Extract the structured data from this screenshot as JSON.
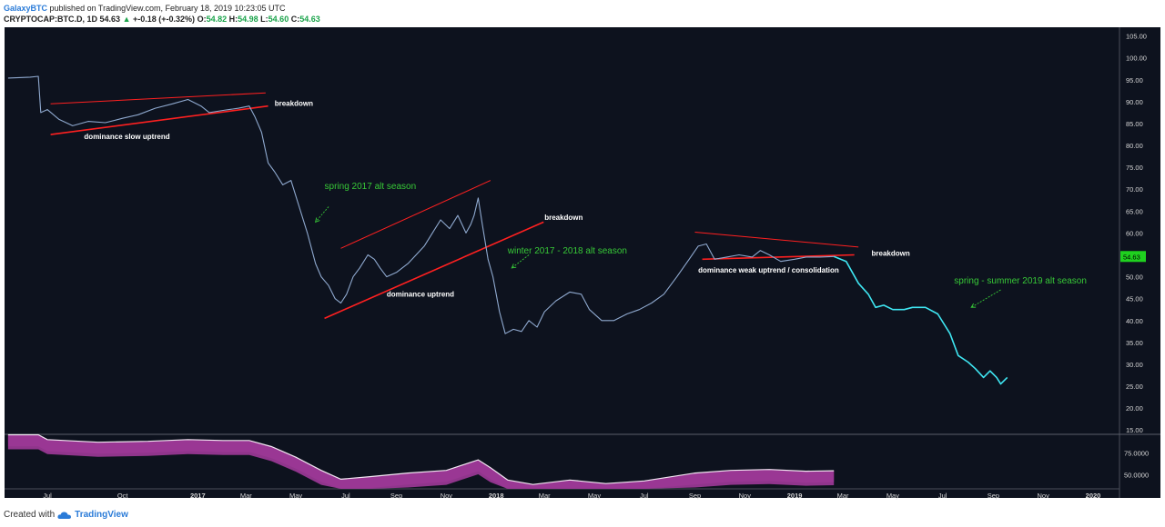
{
  "header": {
    "author": "GalaxyBTC",
    "published": "published on TradingView.com, February 18, 2019 10:23:05 UTC",
    "symbol": "CRYPTOCAP:BTC.D, 1D",
    "last": "54.63",
    "change": "+-0.18 (+-0.32%)",
    "o_label": "O:",
    "o": "54.82",
    "h_label": "H:",
    "h": "54.98",
    "l_label": "L:",
    "l": "54.60",
    "c_label": "C:",
    "c": "54.63"
  },
  "footer": {
    "created_with": "Created with",
    "brand": "TradingView",
    "logo_icon": "tradingview-cloud-icon"
  },
  "colors": {
    "background": "#0d121e",
    "price_line": "#8fa9cf",
    "projection_line": "#3fe6f2",
    "trendline": "#ff2020",
    "annotation_green": "#37c837",
    "price_badge": "#1fd11f"
  },
  "chart_data": {
    "type": "line",
    "title": "",
    "xlabel": "",
    "ylabel": "",
    "y_ticks": [
      "105.00",
      "100.00",
      "95.00",
      "90.00",
      "85.00",
      "80.00",
      "75.00",
      "70.00",
      "65.00",
      "60.00",
      "55.00",
      "50.00",
      "45.00",
      "40.00",
      "35.00",
      "30.00",
      "25.00",
      "20.00",
      "15.00"
    ],
    "ylim": [
      14,
      107
    ],
    "x_ticks": [
      {
        "label": "Jul",
        "date": "2016-07-01"
      },
      {
        "label": "Oct",
        "date": "2016-10-01"
      },
      {
        "label": "2017",
        "date": "2017-01-01"
      },
      {
        "label": "Mar",
        "date": "2017-03-01"
      },
      {
        "label": "May",
        "date": "2017-05-01"
      },
      {
        "label": "Jul",
        "date": "2017-07-01"
      },
      {
        "label": "Sep",
        "date": "2017-09-01"
      },
      {
        "label": "Nov",
        "date": "2017-11-01"
      },
      {
        "label": "2018",
        "date": "2018-01-01"
      },
      {
        "label": "Mar",
        "date": "2018-03-01"
      },
      {
        "label": "May",
        "date": "2018-05-01"
      },
      {
        "label": "Jul",
        "date": "2018-07-01"
      },
      {
        "label": "Sep",
        "date": "2018-09-01"
      },
      {
        "label": "Nov",
        "date": "2018-11-01"
      },
      {
        "label": "2019",
        "date": "2019-01-01"
      },
      {
        "label": "Mar",
        "date": "2019-03-01"
      },
      {
        "label": "May",
        "date": "2019-05-01"
      },
      {
        "label": "Jul",
        "date": "2019-07-01"
      },
      {
        "label": "Sep",
        "date": "2019-09-01"
      },
      {
        "label": "Nov",
        "date": "2019-11-01"
      },
      {
        "label": "2020",
        "date": "2020-01-01"
      }
    ],
    "last_price_label": "54.63",
    "series": [
      {
        "points": [
          [
            "2016-05-14",
            95.4
          ],
          [
            "2016-06-10",
            95.6
          ],
          [
            "2016-06-20",
            95.8
          ],
          [
            "2016-06-23",
            87.5
          ],
          [
            "2016-07-01",
            88.2
          ],
          [
            "2016-07-15",
            86.0
          ],
          [
            "2016-08-01",
            84.5
          ],
          [
            "2016-08-20",
            85.5
          ],
          [
            "2016-09-10",
            85.2
          ],
          [
            "2016-10-01",
            86.2
          ],
          [
            "2016-10-20",
            87.0
          ],
          [
            "2016-11-10",
            88.5
          ],
          [
            "2016-12-01",
            89.5
          ],
          [
            "2016-12-20",
            90.5
          ],
          [
            "2017-01-05",
            89.0
          ],
          [
            "2017-01-15",
            87.5
          ],
          [
            "2017-02-01",
            88.0
          ],
          [
            "2017-02-20",
            88.5
          ],
          [
            "2017-03-05",
            89.0
          ],
          [
            "2017-03-12",
            86.5
          ],
          [
            "2017-03-20",
            83.0
          ],
          [
            "2017-03-28",
            76.0
          ],
          [
            "2017-04-05",
            74.0
          ],
          [
            "2017-04-15",
            71.0
          ],
          [
            "2017-04-25",
            72.0
          ],
          [
            "2017-05-05",
            66.0
          ],
          [
            "2017-05-15",
            60.0
          ],
          [
            "2017-05-25",
            53.0
          ],
          [
            "2017-06-01",
            50.0
          ],
          [
            "2017-06-10",
            48.0
          ],
          [
            "2017-06-18",
            45.0
          ],
          [
            "2017-06-25",
            44.0
          ],
          [
            "2017-07-02",
            46.0
          ],
          [
            "2017-07-10",
            50.0
          ],
          [
            "2017-07-18",
            52.0
          ],
          [
            "2017-07-28",
            55.0
          ],
          [
            "2017-08-05",
            54.0
          ],
          [
            "2017-08-12",
            52.0
          ],
          [
            "2017-08-20",
            50.0
          ],
          [
            "2017-09-01",
            51.0
          ],
          [
            "2017-09-15",
            53.0
          ],
          [
            "2017-09-25",
            55.0
          ],
          [
            "2017-10-05",
            57.0
          ],
          [
            "2017-10-15",
            60.0
          ],
          [
            "2017-10-25",
            63.0
          ],
          [
            "2017-11-05",
            61.0
          ],
          [
            "2017-11-15",
            64.0
          ],
          [
            "2017-11-25",
            60.0
          ],
          [
            "2017-12-01",
            62.0
          ],
          [
            "2017-12-05",
            64.0
          ],
          [
            "2017-12-10",
            68.0
          ],
          [
            "2017-12-15",
            62.0
          ],
          [
            "2017-12-22",
            54.0
          ],
          [
            "2017-12-28",
            50.0
          ],
          [
            "2018-01-05",
            42.0
          ],
          [
            "2018-01-12",
            37.0
          ],
          [
            "2018-01-22",
            38.0
          ],
          [
            "2018-02-01",
            37.5
          ],
          [
            "2018-02-10",
            40.0
          ],
          [
            "2018-02-20",
            38.5
          ],
          [
            "2018-03-01",
            42.0
          ],
          [
            "2018-03-15",
            44.5
          ],
          [
            "2018-04-01",
            46.5
          ],
          [
            "2018-04-15",
            46.0
          ],
          [
            "2018-04-25",
            42.5
          ],
          [
            "2018-05-10",
            40.0
          ],
          [
            "2018-05-25",
            40.0
          ],
          [
            "2018-06-10",
            41.5
          ],
          [
            "2018-06-25",
            42.5
          ],
          [
            "2018-07-10",
            44.0
          ],
          [
            "2018-07-25",
            46.0
          ],
          [
            "2018-08-10",
            50.0
          ],
          [
            "2018-08-25",
            54.0
          ],
          [
            "2018-09-05",
            57.0
          ],
          [
            "2018-09-15",
            57.5
          ],
          [
            "2018-09-25",
            54.0
          ],
          [
            "2018-10-10",
            54.5
          ],
          [
            "2018-10-25",
            55.0
          ],
          [
            "2018-11-10",
            54.5
          ],
          [
            "2018-11-20",
            56.0
          ],
          [
            "2018-12-01",
            55.0
          ],
          [
            "2018-12-15",
            53.5
          ],
          [
            "2019-01-01",
            54.0
          ],
          [
            "2019-01-15",
            54.5
          ],
          [
            "2019-02-01",
            54.5
          ],
          [
            "2019-02-18",
            54.63
          ]
        ]
      },
      {
        "points": [
          [
            "2019-02-18",
            54.63
          ],
          [
            "2019-03-05",
            53.5
          ],
          [
            "2019-03-20",
            48.5
          ],
          [
            "2019-04-01",
            46.0
          ],
          [
            "2019-04-10",
            43.0
          ],
          [
            "2019-04-20",
            43.5
          ],
          [
            "2019-05-01",
            42.5
          ],
          [
            "2019-05-15",
            42.5
          ],
          [
            "2019-05-25",
            43.0
          ],
          [
            "2019-06-10",
            43.0
          ],
          [
            "2019-06-25",
            41.5
          ],
          [
            "2019-07-10",
            37.0
          ],
          [
            "2019-07-20",
            32.0
          ],
          [
            "2019-08-01",
            30.5
          ],
          [
            "2019-08-10",
            29.0
          ],
          [
            "2019-08-20",
            27.0
          ],
          [
            "2019-08-28",
            28.5
          ],
          [
            "2019-09-05",
            27.0
          ],
          [
            "2019-09-10",
            25.5
          ],
          [
            "2019-09-18",
            27.0
          ]
        ]
      }
    ],
    "trendlines": [
      {
        "from": [
          "2016-07-05",
          89.5
        ],
        "to": [
          "2017-03-25",
          92.0
        ]
      },
      {
        "from": [
          "2016-07-05",
          82.5
        ],
        "to": [
          "2017-03-28",
          89.0
        ]
      },
      {
        "from": [
          "2017-06-25",
          56.5
        ],
        "to": [
          "2017-12-25",
          72.0
        ]
      },
      {
        "from": [
          "2017-06-05",
          40.5
        ],
        "to": [
          "2018-02-28",
          62.5
        ]
      },
      {
        "from": [
          "2018-09-01",
          60.2
        ],
        "to": [
          "2019-03-20",
          56.8
        ]
      },
      {
        "from": [
          "2018-09-10",
          54.0
        ],
        "to": [
          "2019-03-15",
          55.0
        ]
      }
    ],
    "arrows": [
      {
        "from": [
          "2017-06-10",
          66.0
        ],
        "to": [
          "2017-05-25",
          62.5
        ]
      },
      {
        "from": [
          "2018-02-10",
          55.0
        ],
        "to": [
          "2018-01-20",
          52.0
        ]
      },
      {
        "from": [
          "2019-09-10",
          47.0
        ],
        "to": [
          "2019-08-05",
          43.0
        ]
      }
    ],
    "annotations": [
      {
        "text": "breakdown",
        "at": [
          "2017-04-05",
          89.0
        ],
        "style": "white"
      },
      {
        "text": "dominance slow uptrend",
        "at": [
          "2016-08-15",
          81.5
        ],
        "style": "white"
      },
      {
        "text": "spring 2017 alt season",
        "at": [
          "2017-06-05",
          70.0
        ],
        "style": "green"
      },
      {
        "text": "breakdown",
        "at": [
          "2018-03-01",
          63.0
        ],
        "style": "white"
      },
      {
        "text": "winter 2017 - 2018 alt season",
        "at": [
          "2018-01-15",
          55.3
        ],
        "style": "green"
      },
      {
        "text": "dominance uptrend",
        "at": [
          "2017-08-20",
          45.5
        ],
        "style": "white"
      },
      {
        "text": "breakdown",
        "at": [
          "2019-04-05",
          54.8
        ],
        "style": "white"
      },
      {
        "text": "dominance weak uptrend / consolidation",
        "at": [
          "2018-09-05",
          51.0
        ],
        "style": "white"
      },
      {
        "text": "spring - summer 2019 alt season",
        "at": [
          "2019-07-15",
          48.5
        ],
        "style": "green"
      }
    ],
    "lower_panel": {
      "type": "area",
      "y_ticks": [
        "75.0000",
        "50.0000"
      ],
      "ylim": [
        34,
        96
      ],
      "values": [
        [
          "2016-05-14",
          95.5
        ],
        [
          "2016-06-20",
          95.5
        ],
        [
          "2016-07-01",
          90.0
        ],
        [
          "2016-09-01",
          87.0
        ],
        [
          "2016-11-01",
          88.0
        ],
        [
          "2016-12-20",
          90.0
        ],
        [
          "2017-02-01",
          89.0
        ],
        [
          "2017-03-05",
          89.0
        ],
        [
          "2017-04-01",
          82.0
        ],
        [
          "2017-05-01",
          70.0
        ],
        [
          "2017-06-01",
          55.0
        ],
        [
          "2017-06-25",
          45.0
        ],
        [
          "2017-08-01",
          48.0
        ],
        [
          "2017-09-15",
          52.0
        ],
        [
          "2017-11-01",
          55.0
        ],
        [
          "2017-12-10",
          67.0
        ],
        [
          "2017-12-25",
          58.0
        ],
        [
          "2018-01-15",
          44.0
        ],
        [
          "2018-02-15",
          39.0
        ],
        [
          "2018-04-01",
          44.0
        ],
        [
          "2018-05-15",
          40.0
        ],
        [
          "2018-07-01",
          43.0
        ],
        [
          "2018-09-01",
          52.0
        ],
        [
          "2018-10-15",
          55.0
        ],
        [
          "2018-12-01",
          56.0
        ],
        [
          "2019-01-15",
          54.0
        ],
        [
          "2019-02-18",
          54.6
        ]
      ]
    }
  }
}
